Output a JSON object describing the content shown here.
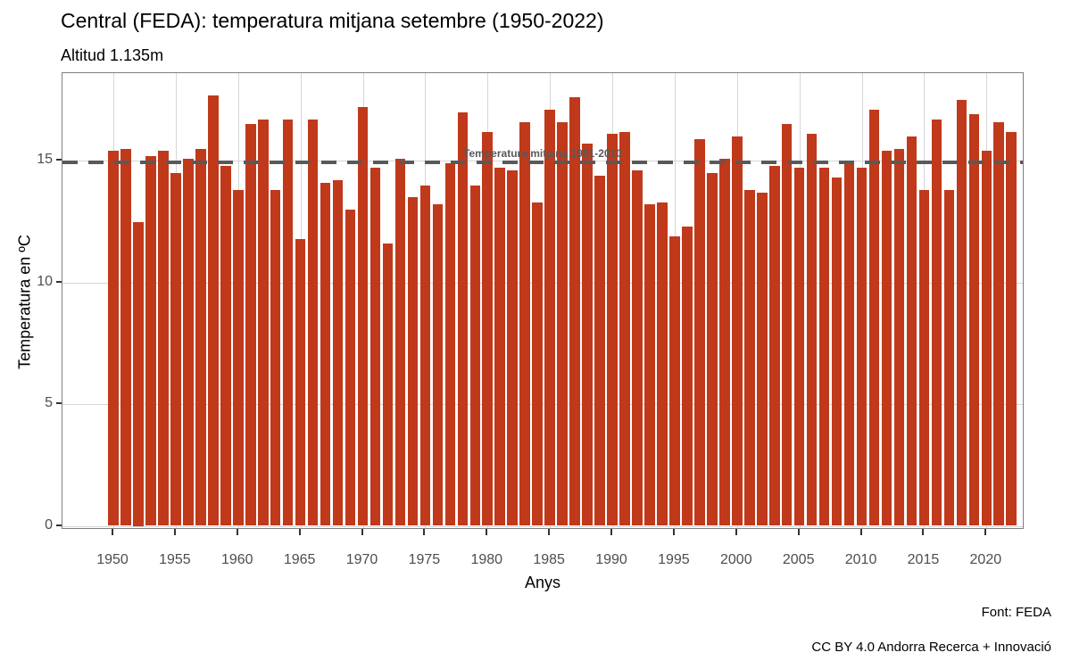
{
  "chart_data": {
    "type": "bar",
    "title": "Central (FEDA): temperatura mitjana  setembre (1950-2022)",
    "subtitle": "Altitud 1.135m",
    "xlabel": "Anys",
    "ylabel": "Temperatura en ºC",
    "ylim": [
      0,
      18.6
    ],
    "yticks": [
      0,
      5,
      10,
      15
    ],
    "xticks": [
      1950,
      1955,
      1960,
      1965,
      1970,
      1975,
      1980,
      1985,
      1990,
      1995,
      2000,
      2005,
      2010,
      2015,
      2020
    ],
    "grid": true,
    "legend": "none",
    "bar_color": "#c0391b",
    "reference_line": {
      "value": 14.95,
      "label": "Temperatura mitjana 1981-2010",
      "color": "#595959",
      "style": "dashed"
    },
    "years": [
      1950,
      1951,
      1952,
      1953,
      1954,
      1955,
      1956,
      1957,
      1958,
      1959,
      1960,
      1961,
      1962,
      1963,
      1964,
      1965,
      1966,
      1967,
      1968,
      1969,
      1970,
      1971,
      1972,
      1973,
      1974,
      1975,
      1976,
      1977,
      1978,
      1979,
      1980,
      1981,
      1982,
      1983,
      1984,
      1985,
      1986,
      1987,
      1988,
      1989,
      1990,
      1991,
      1992,
      1993,
      1994,
      1995,
      1996,
      1997,
      1998,
      1999,
      2000,
      2001,
      2002,
      2003,
      2004,
      2005,
      2006,
      2007,
      2008,
      2009,
      2010,
      2011,
      2012,
      2013,
      2014,
      2015,
      2016,
      2017,
      2018,
      2019,
      2020,
      2021,
      2022
    ],
    "values": [
      15.4,
      15.5,
      12.5,
      15.2,
      15.4,
      14.5,
      15.1,
      15.5,
      17.7,
      14.8,
      13.8,
      16.5,
      16.7,
      13.8,
      16.7,
      11.8,
      16.7,
      14.1,
      14.2,
      13.0,
      17.2,
      14.7,
      11.6,
      15.1,
      13.5,
      14.0,
      13.2,
      14.9,
      17.0,
      14.0,
      16.2,
      14.7,
      14.6,
      16.6,
      13.3,
      17.1,
      16.6,
      17.6,
      15.7,
      14.4,
      16.1,
      16.2,
      14.6,
      13.2,
      13.3,
      11.9,
      12.3,
      15.9,
      14.5,
      15.1,
      16.0,
      13.8,
      13.7,
      14.8,
      16.5,
      14.7,
      16.1,
      14.7,
      14.3,
      14.9,
      14.7,
      17.1,
      15.4,
      15.5,
      16.0,
      13.8,
      16.7,
      13.8,
      17.5,
      16.9,
      15.4,
      16.6,
      16.2
    ]
  },
  "footer": {
    "source": "Font: FEDA",
    "license": "CC BY 4.0 Andorra Recerca + Innovació"
  }
}
